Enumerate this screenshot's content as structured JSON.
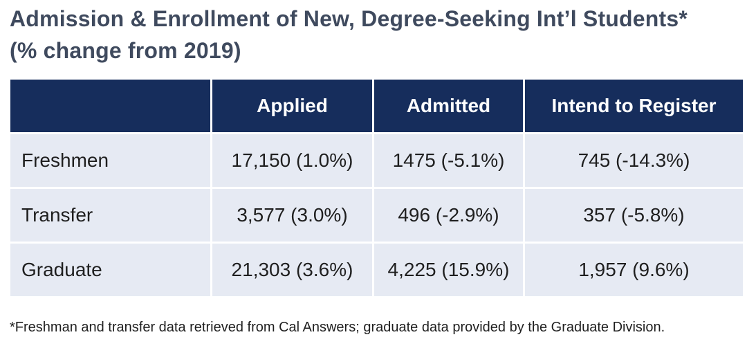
{
  "title": {
    "line1": "Admission & Enrollment of New, Degree-Seeking Int’l Students*",
    "line2": "(% change from 2019)"
  },
  "table": {
    "headers": [
      "",
      "Applied",
      "Admitted",
      "Intend to Register"
    ],
    "rows": [
      {
        "label": "Freshmen",
        "applied": "17,150 (1.0%)",
        "admitted": "1475 (-5.1%)",
        "intend": "745 (-14.3%)"
      },
      {
        "label": "Transfer",
        "applied": "3,577 (3.0%)",
        "admitted": "496 (-2.9%)",
        "intend": "357 (-5.8%)"
      },
      {
        "label": "Graduate",
        "applied": "21,303 (3.6%)",
        "admitted": "4,225 (15.9%)",
        "intend": "1,957 (9.6%)"
      }
    ]
  },
  "footnote": "*Freshman and transfer data retrieved from Cal Answers; graduate data provided by the Graduate Division.",
  "colors": {
    "header_bg": "#162d5c",
    "cell_bg": "#e6eaf3",
    "title_text": "#3f4a5e"
  }
}
